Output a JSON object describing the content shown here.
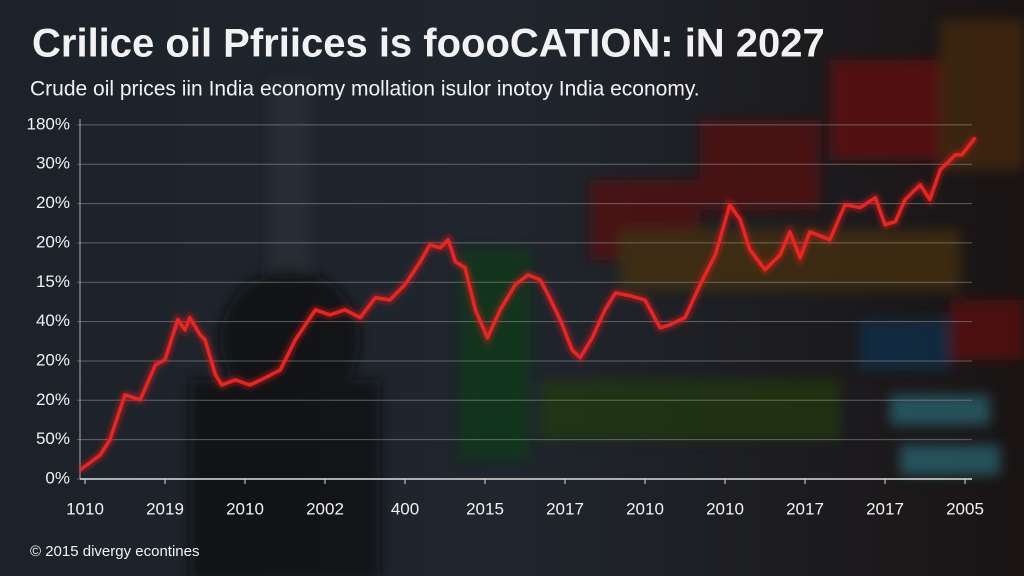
{
  "chart_data": {
    "type": "line",
    "title": "Crilice oil Pfriices is foooCATION: iN 2027",
    "subtitle": "Crude oil prices iin India economy mollation isulor inotoy India economy.",
    "footer": "© 2015 divergy econtines",
    "color": "#ec2320",
    "grid": true,
    "x": [
      -0.06,
      0.19,
      0.31,
      0.5,
      0.69,
      0.88,
      1.0,
      1.16,
      1.25,
      1.31,
      1.44,
      1.5,
      1.63,
      1.71,
      1.88,
      2.06,
      2.25,
      2.44,
      2.63,
      2.88,
      3.06,
      3.25,
      3.44,
      3.63,
      3.81,
      4.0,
      4.19,
      4.31,
      4.44,
      4.54,
      4.63,
      4.75,
      4.88,
      5.03,
      5.19,
      5.38,
      5.54,
      5.69,
      5.79,
      5.94,
      6.09,
      6.19,
      6.34,
      6.5,
      6.63,
      6.81,
      7.0,
      7.19,
      7.31,
      7.5,
      7.69,
      7.88,
      8.06,
      8.19,
      8.31,
      8.5,
      8.69,
      8.81,
      8.94,
      9.06,
      9.31,
      9.5,
      9.69,
      9.88,
      10.0,
      10.13,
      10.25,
      10.44,
      10.56,
      10.69,
      10.88,
      10.96,
      11.13
    ],
    "values": [
      0.23,
      0.61,
      0.99,
      2.14,
      2.01,
      2.9,
      3.03,
      4.05,
      3.79,
      4.1,
      3.66,
      3.54,
      2.65,
      2.39,
      2.52,
      2.39,
      2.57,
      2.77,
      3.54,
      4.3,
      4.17,
      4.3,
      4.1,
      4.61,
      4.55,
      4.94,
      5.52,
      5.95,
      5.88,
      6.08,
      5.52,
      5.37,
      4.3,
      3.59,
      4.3,
      4.94,
      5.19,
      5.06,
      4.68,
      4.05,
      3.28,
      3.08,
      3.59,
      4.3,
      4.73,
      4.66,
      4.55,
      3.84,
      3.92,
      4.1,
      4.94,
      5.7,
      6.97,
      6.59,
      5.83,
      5.32,
      5.7,
      6.28,
      5.62,
      6.28,
      6.08,
      6.97,
      6.9,
      7.15,
      6.46,
      6.54,
      7.1,
      7.48,
      7.1,
      7.86,
      8.24,
      8.24,
      8.68
    ],
    "xlim": [
      -0.1,
      11.25
    ],
    "ylim": [
      0,
      9.15
    ],
    "yticks": [
      {
        "value": 9,
        "label": "180%"
      },
      {
        "value": 8,
        "label": "30%"
      },
      {
        "value": 7,
        "label": "20%"
      },
      {
        "value": 6,
        "label": "20%"
      },
      {
        "value": 5,
        "label": "15%"
      },
      {
        "value": 4,
        "label": "40%"
      },
      {
        "value": 3,
        "label": "20%"
      },
      {
        "value": 2,
        "label": "20%"
      },
      {
        "value": 1,
        "label": "50%"
      },
      {
        "value": 0,
        "label": "0%"
      }
    ],
    "xticks": [
      {
        "value": 0,
        "label": "1010"
      },
      {
        "value": 1,
        "label": "2019"
      },
      {
        "value": 2,
        "label": "2010"
      },
      {
        "value": 3,
        "label": "2002"
      },
      {
        "value": 4,
        "label": "400"
      },
      {
        "value": 5,
        "label": "2015"
      },
      {
        "value": 6,
        "label": "2017"
      },
      {
        "value": 7,
        "label": "2010"
      },
      {
        "value": 8,
        "label": "2010"
      },
      {
        "value": 9,
        "label": "2017"
      },
      {
        "value": 10,
        "label": "2017"
      },
      {
        "value": 11,
        "label": "2005"
      }
    ]
  }
}
